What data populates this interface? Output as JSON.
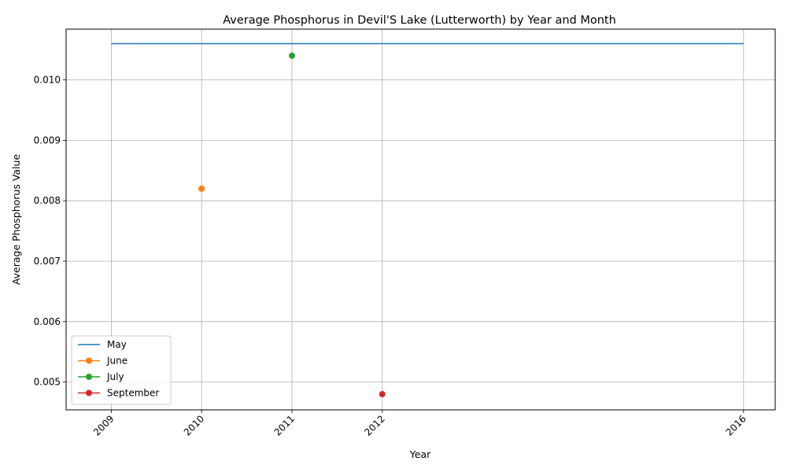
{
  "chart_data": {
    "type": "line",
    "title": "Average Phosphorus in Devil'S Lake (Lutterworth) by Year and Month",
    "xlabel": "Year",
    "ylabel": "Average Phosphorus Value",
    "xlim": [
      2008.5,
      2016.35
    ],
    "ylim": [
      0.00454,
      0.01084
    ],
    "x_ticks": [
      2009,
      2010,
      2011,
      2012,
      2016
    ],
    "y_ticks": [
      0.005,
      0.006,
      0.007,
      0.008,
      0.009,
      0.01
    ],
    "y_tick_labels": [
      "0.005",
      "0.006",
      "0.007",
      "0.008",
      "0.009",
      "0.010"
    ],
    "grid": true,
    "legend_position": "lower-left",
    "series": [
      {
        "name": "May",
        "color": "#1f77b4",
        "markers": false,
        "x": [
          2009,
          2016
        ],
        "y": [
          0.0106,
          0.0106
        ]
      },
      {
        "name": "June",
        "color": "#ff7f0e",
        "markers": true,
        "x": [
          2010
        ],
        "y": [
          0.0082
        ]
      },
      {
        "name": "July",
        "color": "#2ca02c",
        "markers": true,
        "x": [
          2011
        ],
        "y": [
          0.0104
        ]
      },
      {
        "name": "September",
        "color": "#d62728",
        "markers": true,
        "x": [
          2012
        ],
        "y": [
          0.0048
        ]
      }
    ]
  }
}
